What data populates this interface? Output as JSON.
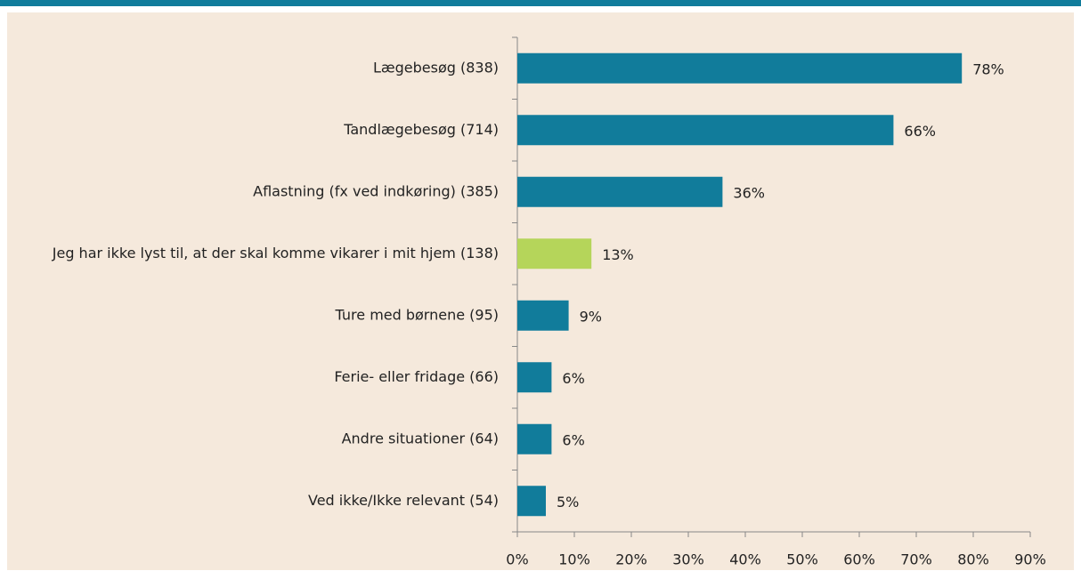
{
  "chart_data": {
    "type": "bar",
    "orientation": "horizontal",
    "categories": [
      "Lægebesøg (838)",
      "Tandlægebesøg (714)",
      "Aflastning (fx ved indkøring) (385)",
      "Jeg har ikke lyst til, at der skal komme vikarer i mit hjem (138)",
      "Ture med børnene (95)",
      "Ferie- eller fridage (66)",
      "Andre situationer (64)",
      "Ved ikke/Ikke relevant (54)"
    ],
    "values": [
      78,
      66,
      36,
      13,
      9,
      6,
      6,
      5
    ],
    "value_labels": [
      "78%",
      "66%",
      "36%",
      "13%",
      "9%",
      "6%",
      "6%",
      "5%"
    ],
    "colors": [
      "#117c9b",
      "#117c9b",
      "#117c9b",
      "#b5d55a",
      "#117c9b",
      "#117c9b",
      "#117c9b",
      "#117c9b"
    ],
    "xlim": [
      0,
      90
    ],
    "xticks": [
      {
        "value": 0,
        "label": "0%"
      },
      {
        "value": 10,
        "label": "10%"
      },
      {
        "value": 20,
        "label": "20%"
      },
      {
        "value": 30,
        "label": "30%"
      },
      {
        "value": 40,
        "label": "40%"
      },
      {
        "value": 50,
        "label": "50%"
      },
      {
        "value": 60,
        "label": "60%"
      },
      {
        "value": 70,
        "label": "70%"
      },
      {
        "value": 80,
        "label": "80%"
      },
      {
        "value": 90,
        "label": "90%"
      }
    ],
    "grid": false
  }
}
